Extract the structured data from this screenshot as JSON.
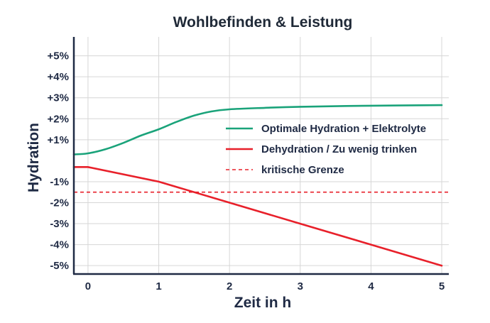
{
  "chart_data": {
    "type": "line",
    "title": "Wohlbefinden & Leistung",
    "xlabel": "Zeit in h",
    "ylabel": "Hydration",
    "xlim": [
      -0.2,
      5.1
    ],
    "ylim": [
      -5.4,
      5.9
    ],
    "x_ticks": [
      0,
      1,
      2,
      3,
      4,
      5
    ],
    "x_tick_labels": [
      "0",
      "1",
      "2",
      "3",
      "4",
      "5"
    ],
    "y_ticks": [
      5,
      4,
      3,
      2,
      1,
      -1,
      -2,
      -3,
      -4,
      -5
    ],
    "y_tick_labels": [
      "+5%",
      "+4%",
      "+3%",
      "+2%",
      "+1%",
      "-1%",
      "-2%",
      "-3%",
      "-4%",
      "-5%"
    ],
    "grid": true,
    "legend_position": "right",
    "series": [
      {
        "name": "Optimale Hydration + Elektrolyte",
        "color": "#1aa37a",
        "style": "solid",
        "x": [
          -0.2,
          0,
          0.25,
          0.5,
          0.75,
          1,
          1.25,
          1.5,
          1.75,
          2,
          2.5,
          3,
          4,
          5
        ],
        "y": [
          0.3,
          0.35,
          0.55,
          0.85,
          1.2,
          1.5,
          1.85,
          2.15,
          2.35,
          2.45,
          2.52,
          2.57,
          2.62,
          2.65
        ]
      },
      {
        "name": "Dehydration / Zu wenig trinken",
        "color": "#e8202a",
        "style": "solid",
        "x": [
          -0.2,
          0,
          1,
          2,
          3,
          4,
          5
        ],
        "y": [
          -0.3,
          -0.3,
          -1.0,
          -2.0,
          -3.0,
          -4.0,
          -5.0
        ]
      },
      {
        "name": "kritische Grenze",
        "color": "#e8202a",
        "style": "dashed",
        "x": [
          -0.2,
          5.1
        ],
        "y": [
          -1.5,
          -1.5
        ]
      }
    ]
  }
}
